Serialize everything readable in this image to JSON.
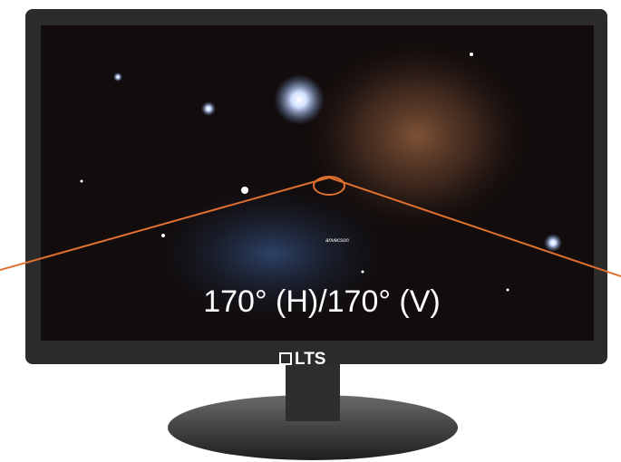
{
  "screen_logo": "anvecson",
  "viewing_angle": "170° (H)/170° (V)",
  "brand": "LTS"
}
